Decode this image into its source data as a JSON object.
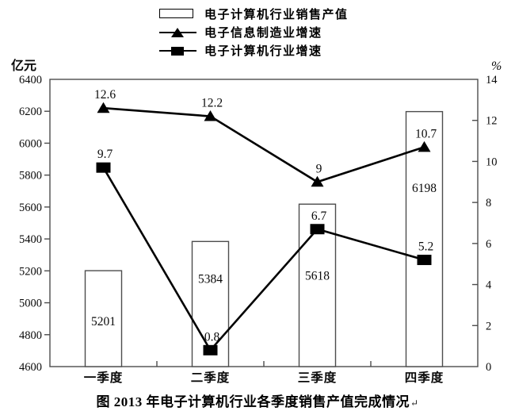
{
  "figure": {
    "background": "#ffffff",
    "ink_color": "#000000",
    "frame_color": "#4d4d4d"
  },
  "legend": {
    "items": [
      {
        "label": "电子计算机行业销售产值",
        "marker": "bar-outline-swatch"
      },
      {
        "label": "电子信息制造业增速",
        "marker": "triangle-line-swatch"
      },
      {
        "label": "电子计算机行业增速",
        "marker": "square-line-swatch"
      }
    ]
  },
  "caption": "图 2013 年电子计算机行业各季度销售产值完成情况",
  "caption_mark": "↵",
  "chart_data": {
    "type": "combo",
    "categories": [
      "一季度",
      "二季度",
      "三季度",
      "四季度"
    ],
    "series": [
      {
        "name": "电子计算机行业销售产值",
        "type": "bar",
        "axis": "left",
        "values": [
          5201,
          5384,
          5618,
          6198
        ]
      },
      {
        "name": "电子信息制造业增速",
        "type": "line",
        "marker": "triangle",
        "axis": "right",
        "values": [
          12.6,
          12.2,
          9,
          10.7
        ]
      },
      {
        "name": "电子计算机行业增速",
        "type": "line",
        "marker": "square",
        "axis": "right",
        "values": [
          9.7,
          0.8,
          6.7,
          5.2
        ]
      }
    ],
    "left_axis": {
      "label": "亿元",
      "min": 4600,
      "max": 6400,
      "step": 200,
      "ticks": [
        4600,
        4800,
        5000,
        5200,
        5400,
        5600,
        5800,
        6000,
        6200,
        6400
      ]
    },
    "right_axis": {
      "label": "%",
      "min": 0,
      "max": 14,
      "step": 2,
      "ticks": [
        0,
        2,
        4,
        6,
        8,
        10,
        12,
        14
      ]
    },
    "grid": false,
    "legend_position": "top-center",
    "bar_fill": "#ffffff",
    "line_color": "#000000"
  }
}
